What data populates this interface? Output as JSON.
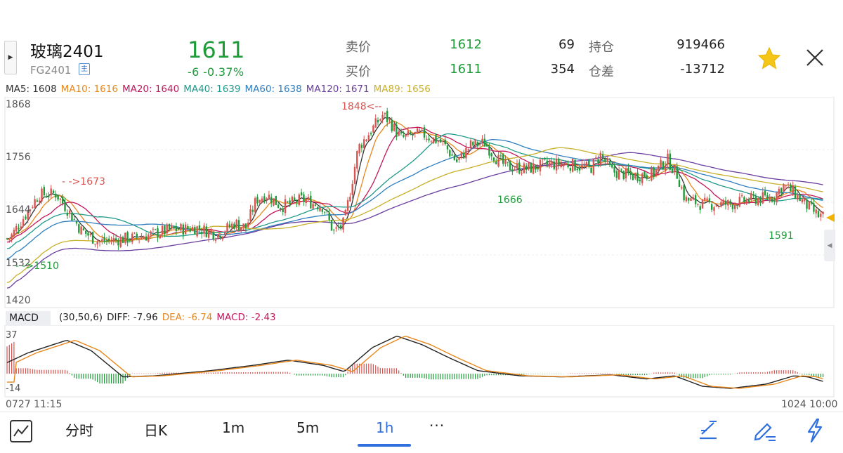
{
  "header": {
    "side_toggle_icon": "▶",
    "name": "玻璃2401",
    "code": "FG2401",
    "exchange_badge": "主",
    "last_price": "1611",
    "change": "-6  -0.37%",
    "quote": [
      {
        "label": "卖价",
        "price": "1612",
        "volume": "69",
        "label2": "持仓",
        "value2": "919466"
      },
      {
        "label": "买价",
        "price": "1611",
        "volume": "354",
        "label2": "仓差",
        "value2": "-13712"
      }
    ],
    "favorite_icon": "star-icon",
    "close_icon": "close-icon"
  },
  "ma_legend": [
    {
      "text": "MA5: 1608",
      "color": "#333333"
    },
    {
      "text": "MA10: 1616",
      "color": "#e8871e"
    },
    {
      "text": "MA20: 1640",
      "color": "#c2185b"
    },
    {
      "text": "MA40: 1639",
      "color": "#1f9a8a"
    },
    {
      "text": "MA60: 1638",
      "color": "#2f7fc1"
    },
    {
      "text": "MA120: 1671",
      "color": "#6a3fa0"
    },
    {
      "text": "MA89: 1656",
      "color": "#c9b02a"
    }
  ],
  "y_axis": [
    "1868",
    "1756",
    "1644",
    "1532",
    "1420"
  ],
  "annotations": {
    "high": "1848<--",
    "left_high": "- ->1673",
    "left_low": "- ->1510",
    "mid_low": "1666",
    "recent_low": "1591"
  },
  "macd": {
    "tag": "MACD",
    "params": "(30,50,6)",
    "diff": "DIFF: -7.96",
    "dea": "DEA: -6.74",
    "macd": "MACD: -2.43",
    "y_top": "37",
    "y_bottom": "-14",
    "colors": {
      "diff": "#222222",
      "dea": "#e8871e",
      "macd": "#c2185b"
    }
  },
  "time_axis": {
    "start": "0727 11:15",
    "end": "1024 10:00"
  },
  "tabs": [
    {
      "label": "分时",
      "active": false
    },
    {
      "label": "日K",
      "active": false
    },
    {
      "label": "1m",
      "active": false
    },
    {
      "label": "5m",
      "active": false
    },
    {
      "label": "1h",
      "active": true
    },
    {
      "label": "···",
      "active": false
    }
  ],
  "toolbar_icons": [
    "chart-icon",
    "draw-line-icon",
    "edit-icon",
    "flash-icon"
  ],
  "colors": {
    "up": "#d9534f",
    "down": "#1f9b3a",
    "accent": "#2f6fe0"
  }
}
